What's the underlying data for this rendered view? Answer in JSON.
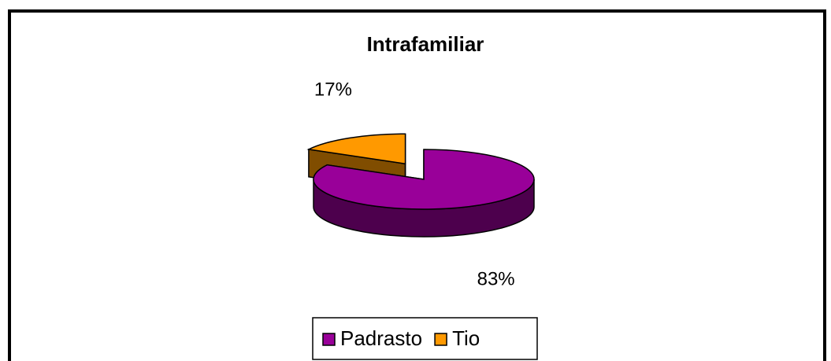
{
  "chart_data": {
    "type": "pie",
    "title": "Intrafamiliar",
    "categories": [
      "Padrasto",
      "Tio"
    ],
    "values": [
      83,
      17
    ],
    "value_labels": [
      "83%",
      "17%"
    ],
    "colors": [
      "#990099",
      "#ff9900"
    ],
    "legend": "bottom",
    "three_d": true
  }
}
